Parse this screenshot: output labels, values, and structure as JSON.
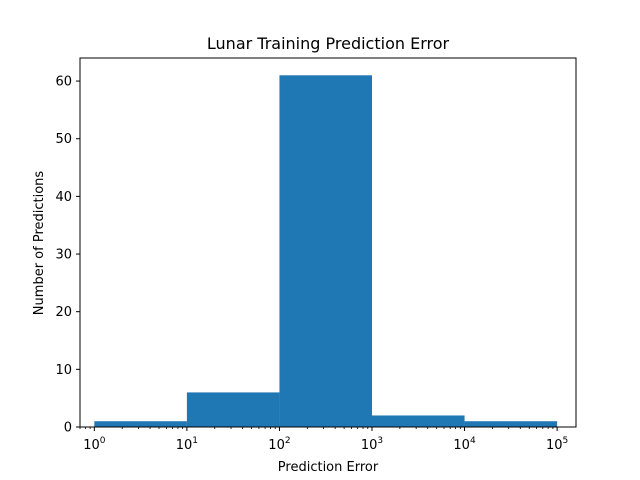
{
  "chart_data": {
    "type": "bar",
    "title": "Lunar Training Prediction Error",
    "xlabel": "Prediction Error",
    "ylabel": "Number of Predictions",
    "x_scale": "log",
    "xlim": [
      0.7,
      160000
    ],
    "ylim": [
      0,
      64
    ],
    "grid": false,
    "bar_color": "#1f77b4",
    "bins": [
      {
        "from": 1,
        "to": 10,
        "count": 1
      },
      {
        "from": 10,
        "to": 100,
        "count": 6
      },
      {
        "from": 100,
        "to": 1000,
        "count": 61
      },
      {
        "from": 1000,
        "to": 10000,
        "count": 2
      },
      {
        "from": 10000,
        "to": 100000,
        "count": 1
      }
    ],
    "x_ticks": [
      {
        "value": 1,
        "base": "10",
        "exp": "0"
      },
      {
        "value": 10,
        "base": "10",
        "exp": "1"
      },
      {
        "value": 100,
        "base": "10",
        "exp": "2"
      },
      {
        "value": 1000,
        "base": "10",
        "exp": "3"
      },
      {
        "value": 10000,
        "base": "10",
        "exp": "4"
      },
      {
        "value": 100000,
        "base": "10",
        "exp": "5"
      }
    ],
    "y_ticks": [
      0,
      10,
      20,
      30,
      40,
      50,
      60
    ]
  }
}
